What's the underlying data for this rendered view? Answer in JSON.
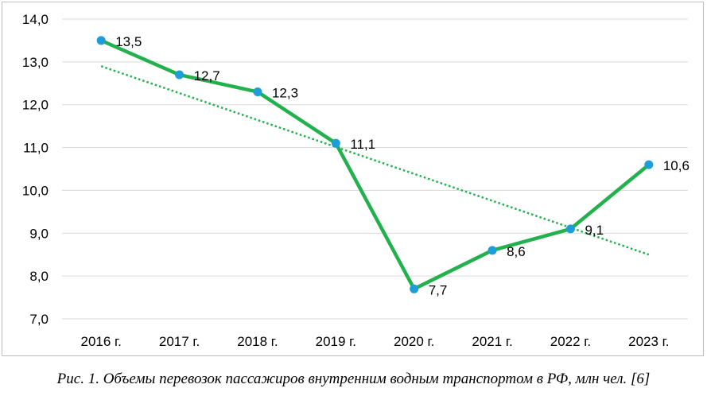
{
  "chart_data": {
    "type": "line",
    "categories": [
      "2016 г.",
      "2017 г.",
      "2018 г.",
      "2019 г.",
      "2020 г.",
      "2021 г.",
      "2022 г.",
      "2023 г."
    ],
    "series": [
      {
        "name": "Объемы перевозок пассажиров",
        "values": [
          13.5,
          12.7,
          12.3,
          11.1,
          7.7,
          8.6,
          9.1,
          10.6
        ],
        "labels": [
          "13,5",
          "12,7",
          "12,3",
          "11,1",
          "7,7",
          "8,6",
          "9,1",
          "10,6"
        ]
      }
    ],
    "trendline": {
      "type": "linear",
      "style": "dotted"
    },
    "ylim": [
      7.0,
      14.0
    ],
    "yticks": [
      7.0,
      8.0,
      9.0,
      10.0,
      11.0,
      12.0,
      13.0,
      14.0
    ],
    "ytick_labels": [
      "7,0",
      "8,0",
      "9,0",
      "10,0",
      "11,0",
      "12,0",
      "13,0",
      "14,0"
    ],
    "grid": true,
    "title": "",
    "xlabel": "",
    "ylabel": ""
  },
  "colors": {
    "line": "#22b14c",
    "marker": "#1e9ed8",
    "trend": "#22b14c",
    "grid": "#d9d9d9"
  },
  "caption": "Рис. 1. Объемы перевозок пассажиров внутренним водным транспортом в РФ, млн чел. [6]"
}
